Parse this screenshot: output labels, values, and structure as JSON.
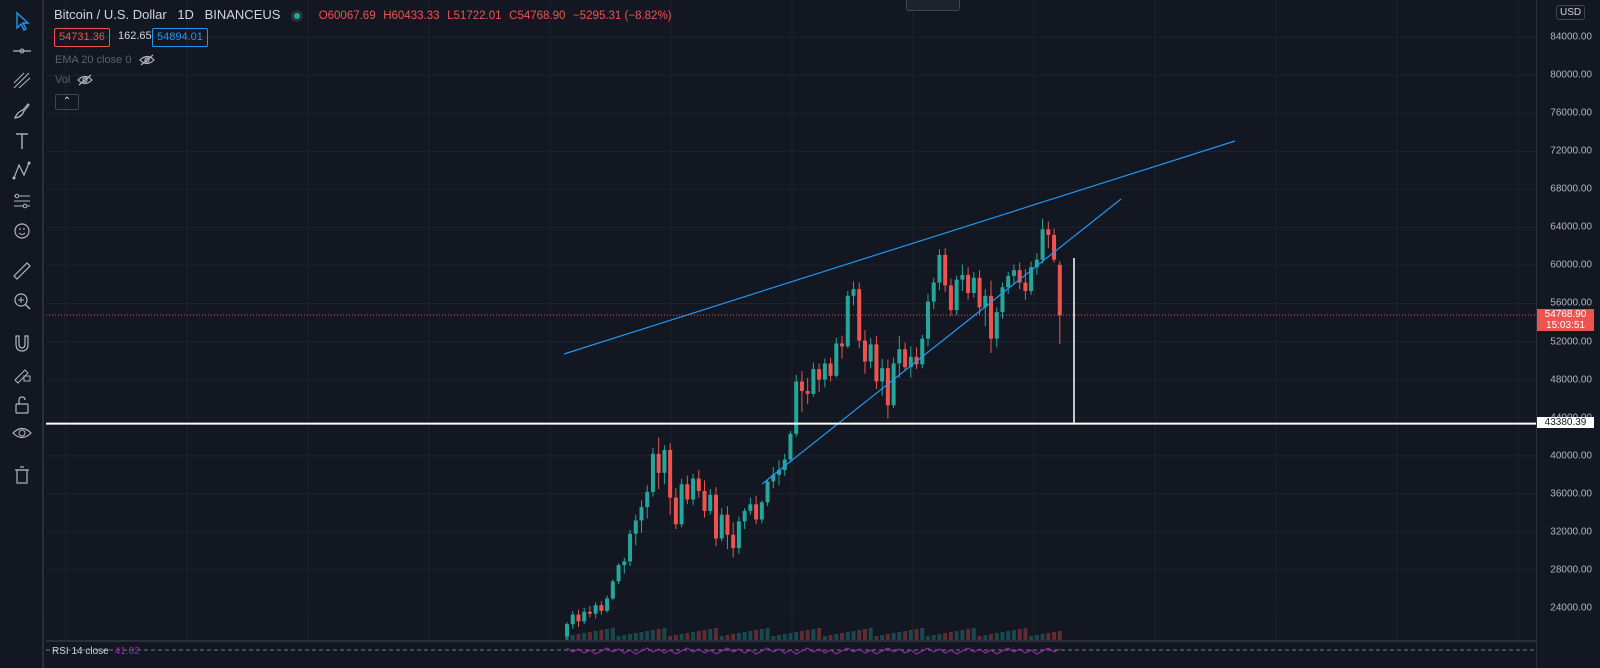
{
  "header": {
    "symbol": "Bitcoin / U.S. Dollar",
    "interval": "1D",
    "exchange": "BINANCEUS",
    "open": "O60067.69",
    "high": "H60433.33",
    "low": "L51722.01",
    "close": "C54768.90",
    "change": "−5295.31 (−8.82%)",
    "bid": "54731.36",
    "spread": "162.65",
    "ask": "54894.01"
  },
  "indicators": {
    "ema": "EMA 20 close 0",
    "vol": "Vol",
    "rsi": "RSI 14 close",
    "rsi_value": "41.02"
  },
  "axis": {
    "currency": "USD",
    "ticks": [
      "84000.00",
      "80000.00",
      "76000.00",
      "72000.00",
      "68000.00",
      "64000.00",
      "60000.00",
      "56000.00",
      "52000.00",
      "48000.00",
      "44000.00",
      "40000.00",
      "36000.00",
      "32000.00",
      "28000.00",
      "24000.00"
    ],
    "current_price": "54768.90",
    "countdown": "15:03:51",
    "horizontal_level": "43380.39"
  },
  "toolbar": {
    "tools": [
      "cursor-icon",
      "trend-line-icon",
      "fib-icon",
      "brush-icon",
      "text-icon",
      "pattern-icon",
      "forecast-icon",
      "emoji-icon",
      "ruler-icon",
      "zoom-icon",
      "magnet-icon",
      "lock-drawings-icon",
      "unlock-icon",
      "eye-icon",
      "trash-icon"
    ]
  },
  "colors": {
    "background": "#131722",
    "up": "#26a69a",
    "down": "#ef5350",
    "trendline": "#2196f3",
    "rsi": "#9c27b0"
  },
  "chart_data": {
    "type": "candlestick",
    "y_range": [
      22000,
      86000
    ],
    "last_close": 54768.9,
    "horizontal_line": 43380.39,
    "ohlc": [
      [
        21000,
        22500,
        20500,
        22300
      ],
      [
        22300,
        23700,
        21800,
        23300
      ],
      [
        23300,
        23800,
        22000,
        22600
      ],
      [
        22600,
        24000,
        22300,
        23600
      ],
      [
        23600,
        24200,
        23000,
        23400
      ],
      [
        23400,
        24600,
        22900,
        24300
      ],
      [
        24300,
        24700,
        23300,
        23700
      ],
      [
        23700,
        25300,
        23500,
        25000
      ],
      [
        25000,
        27000,
        24800,
        26800
      ],
      [
        26800,
        28700,
        26500,
        28500
      ],
      [
        28500,
        29300,
        27600,
        28900
      ],
      [
        28900,
        32200,
        28400,
        31800
      ],
      [
        31800,
        33800,
        30600,
        33200
      ],
      [
        33200,
        35300,
        31900,
        34600
      ],
      [
        34600,
        36900,
        33400,
        36200
      ],
      [
        36200,
        40800,
        35700,
        40200
      ],
      [
        40200,
        41900,
        36500,
        38200
      ],
      [
        38200,
        41100,
        37000,
        40600
      ],
      [
        40600,
        41300,
        33800,
        35600
      ],
      [
        35600,
        36600,
        32300,
        32800
      ],
      [
        32800,
        37600,
        32500,
        37000
      ],
      [
        37000,
        37900,
        34900,
        35400
      ],
      [
        35400,
        38100,
        34800,
        37600
      ],
      [
        37600,
        38500,
        35600,
        36300
      ],
      [
        36300,
        37400,
        33500,
        34200
      ],
      [
        34200,
        36500,
        33800,
        35900
      ],
      [
        35900,
        36700,
        30500,
        31300
      ],
      [
        31300,
        34500,
        31000,
        33800
      ],
      [
        33800,
        34700,
        30200,
        31700
      ],
      [
        31700,
        33000,
        29300,
        30300
      ],
      [
        30300,
        33600,
        29700,
        33100
      ],
      [
        33100,
        34500,
        32300,
        34200
      ],
      [
        34200,
        35600,
        33800,
        34900
      ],
      [
        34900,
        35800,
        32800,
        33300
      ],
      [
        33300,
        35300,
        32900,
        35100
      ],
      [
        35100,
        37500,
        34700,
        37300
      ],
      [
        37300,
        38800,
        36600,
        38000
      ],
      [
        38000,
        39500,
        36900,
        38500
      ],
      [
        38500,
        40200,
        37900,
        39600
      ],
      [
        39600,
        42600,
        39300,
        42300
      ],
      [
        42300,
        48500,
        42000,
        47800
      ],
      [
        47800,
        48900,
        44600,
        46800
      ],
      [
        46800,
        48200,
        45400,
        46500
      ],
      [
        46500,
        49800,
        46200,
        49100
      ],
      [
        49100,
        49700,
        46700,
        48000
      ],
      [
        48000,
        50200,
        47200,
        49700
      ],
      [
        49700,
        50300,
        47800,
        48400
      ],
      [
        48400,
        52400,
        48200,
        51800
      ],
      [
        51800,
        52600,
        50200,
        51500
      ],
      [
        51500,
        57300,
        51300,
        56800
      ],
      [
        56800,
        58300,
        55800,
        57500
      ],
      [
        57500,
        58200,
        51300,
        52100
      ],
      [
        52100,
        53200,
        48600,
        49900
      ],
      [
        49900,
        52400,
        49200,
        51700
      ],
      [
        51700,
        52600,
        47000,
        47800
      ],
      [
        47800,
        50200,
        46300,
        49200
      ],
      [
        49200,
        50100,
        43900,
        45300
      ],
      [
        45300,
        50300,
        45000,
        49700
      ],
      [
        49700,
        52600,
        48200,
        51200
      ],
      [
        51200,
        51900,
        48900,
        49300
      ],
      [
        49300,
        51500,
        48200,
        50400
      ],
      [
        50400,
        51400,
        49100,
        49600
      ],
      [
        49600,
        52700,
        49200,
        52300
      ],
      [
        52300,
        57000,
        51500,
        56200
      ],
      [
        56200,
        58700,
        55400,
        58200
      ],
      [
        58200,
        61700,
        57400,
        61100
      ],
      [
        61100,
        61800,
        57200,
        57900
      ],
      [
        57900,
        58600,
        54700,
        55300
      ],
      [
        55300,
        58900,
        54800,
        58500
      ],
      [
        58500,
        60100,
        57300,
        59000
      ],
      [
        59000,
        59800,
        56400,
        57100
      ],
      [
        57100,
        59300,
        56600,
        58700
      ],
      [
        58700,
        59500,
        54800,
        55600
      ],
      [
        55600,
        57500,
        53600,
        56800
      ],
      [
        56800,
        58400,
        50800,
        52300
      ],
      [
        52300,
        55600,
        51400,
        55100
      ],
      [
        55100,
        58200,
        54400,
        57700
      ],
      [
        57700,
        59300,
        57000,
        58900
      ],
      [
        58900,
        60100,
        58000,
        59500
      ],
      [
        59500,
        60300,
        57500,
        58200
      ],
      [
        58200,
        59600,
        56400,
        57300
      ],
      [
        57300,
        60400,
        56900,
        59800
      ],
      [
        59800,
        61300,
        59000,
        60600
      ],
      [
        60600,
        64900,
        60200,
        63800
      ],
      [
        63800,
        64600,
        61800,
        63200
      ],
      [
        63200,
        63900,
        60300,
        60600
      ],
      [
        60067.69,
        60433.33,
        51722.01,
        54768.9
      ]
    ],
    "trendlines": [
      {
        "name": "upper-resistance",
        "from": [
          0,
          47800
        ],
        "to": [
          1,
          73000
        ]
      },
      {
        "name": "lower-support",
        "from": [
          0,
          37000
        ],
        "to": [
          1,
          67000
        ]
      }
    ]
  }
}
